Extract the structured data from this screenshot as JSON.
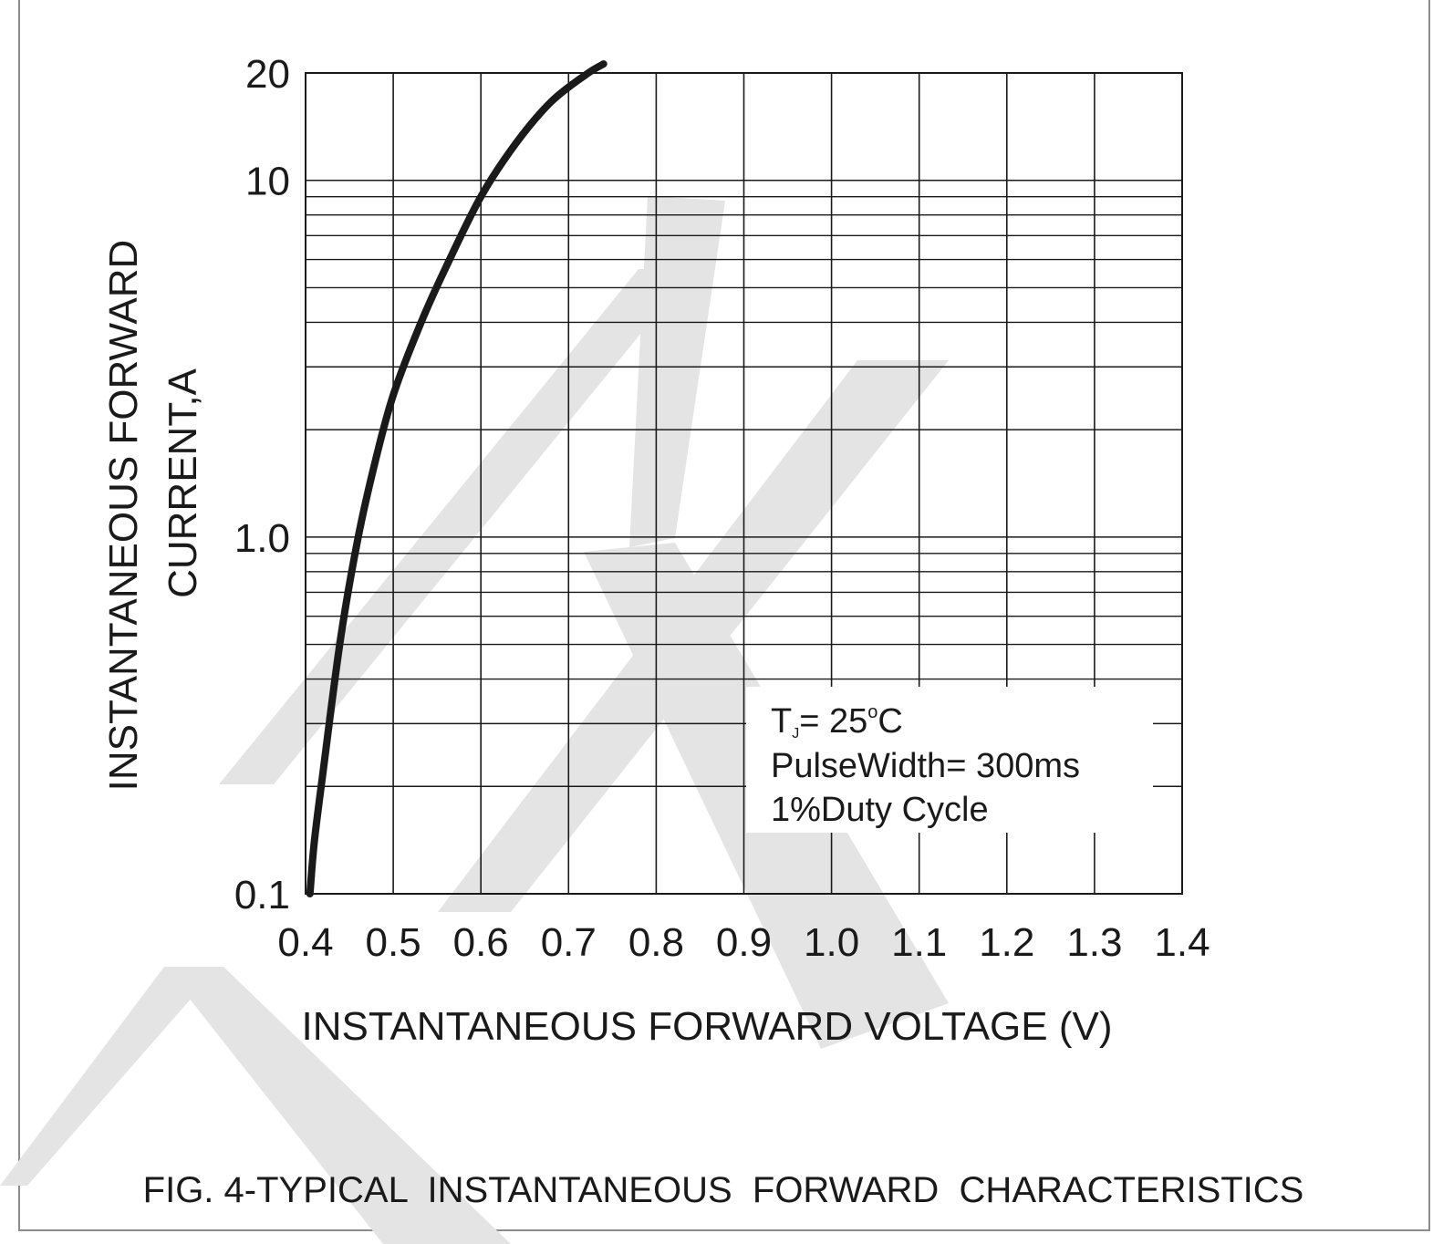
{
  "chart_data": {
    "type": "line",
    "title": "FIG. 4-TYPICAL  INSTANTANEOUS  FORWARD  CHARACTERISTICS",
    "xlabel": "INSTANTANEOUS FORWARD VOLTAGE (V)",
    "ylabel_line1": "INSTANTANEOUS FORWARD",
    "ylabel_line2": "CURRENT,A",
    "x_scale": "linear",
    "y_scale": "log",
    "xlim": [
      0.4,
      1.4
    ],
    "ylim": [
      0.1,
      20
    ],
    "grid": true,
    "x_ticks": [
      "0.4",
      "0.5",
      "0.6",
      "0.7",
      "0.8",
      "0.9",
      "1.0",
      "1.1",
      "1.2",
      "1.3",
      "1.4"
    ],
    "y_ticks": [
      {
        "value": 0.1,
        "label": "0.1"
      },
      {
        "value": 1.0,
        "label": "1.0"
      },
      {
        "value": 10,
        "label": "10"
      },
      {
        "value": 20,
        "label": "20"
      }
    ],
    "annotation": {
      "tj_prefix": "T",
      "tj_sub": "J",
      "tj_value": "= 25",
      "tj_deg": "o",
      "tj_unit": "C",
      "pulse": "PulseWidth= 300ms",
      "duty": "1%Duty Cycle"
    },
    "series": [
      {
        "x": [
          0.405,
          0.41,
          0.42,
          0.44,
          0.46,
          0.48,
          0.5,
          0.53,
          0.56,
          0.6,
          0.64,
          0.68,
          0.72,
          0.74
        ],
        "y": [
          0.1,
          0.14,
          0.22,
          0.52,
          1.0,
          1.65,
          2.5,
          3.9,
          5.7,
          9.0,
          12.7,
          16.6,
          19.8,
          21.2
        ]
      }
    ],
    "colors": {
      "curve": "#1a1a1a",
      "grid": "#1a1a1a",
      "watermark": "#e4e4e4"
    }
  }
}
